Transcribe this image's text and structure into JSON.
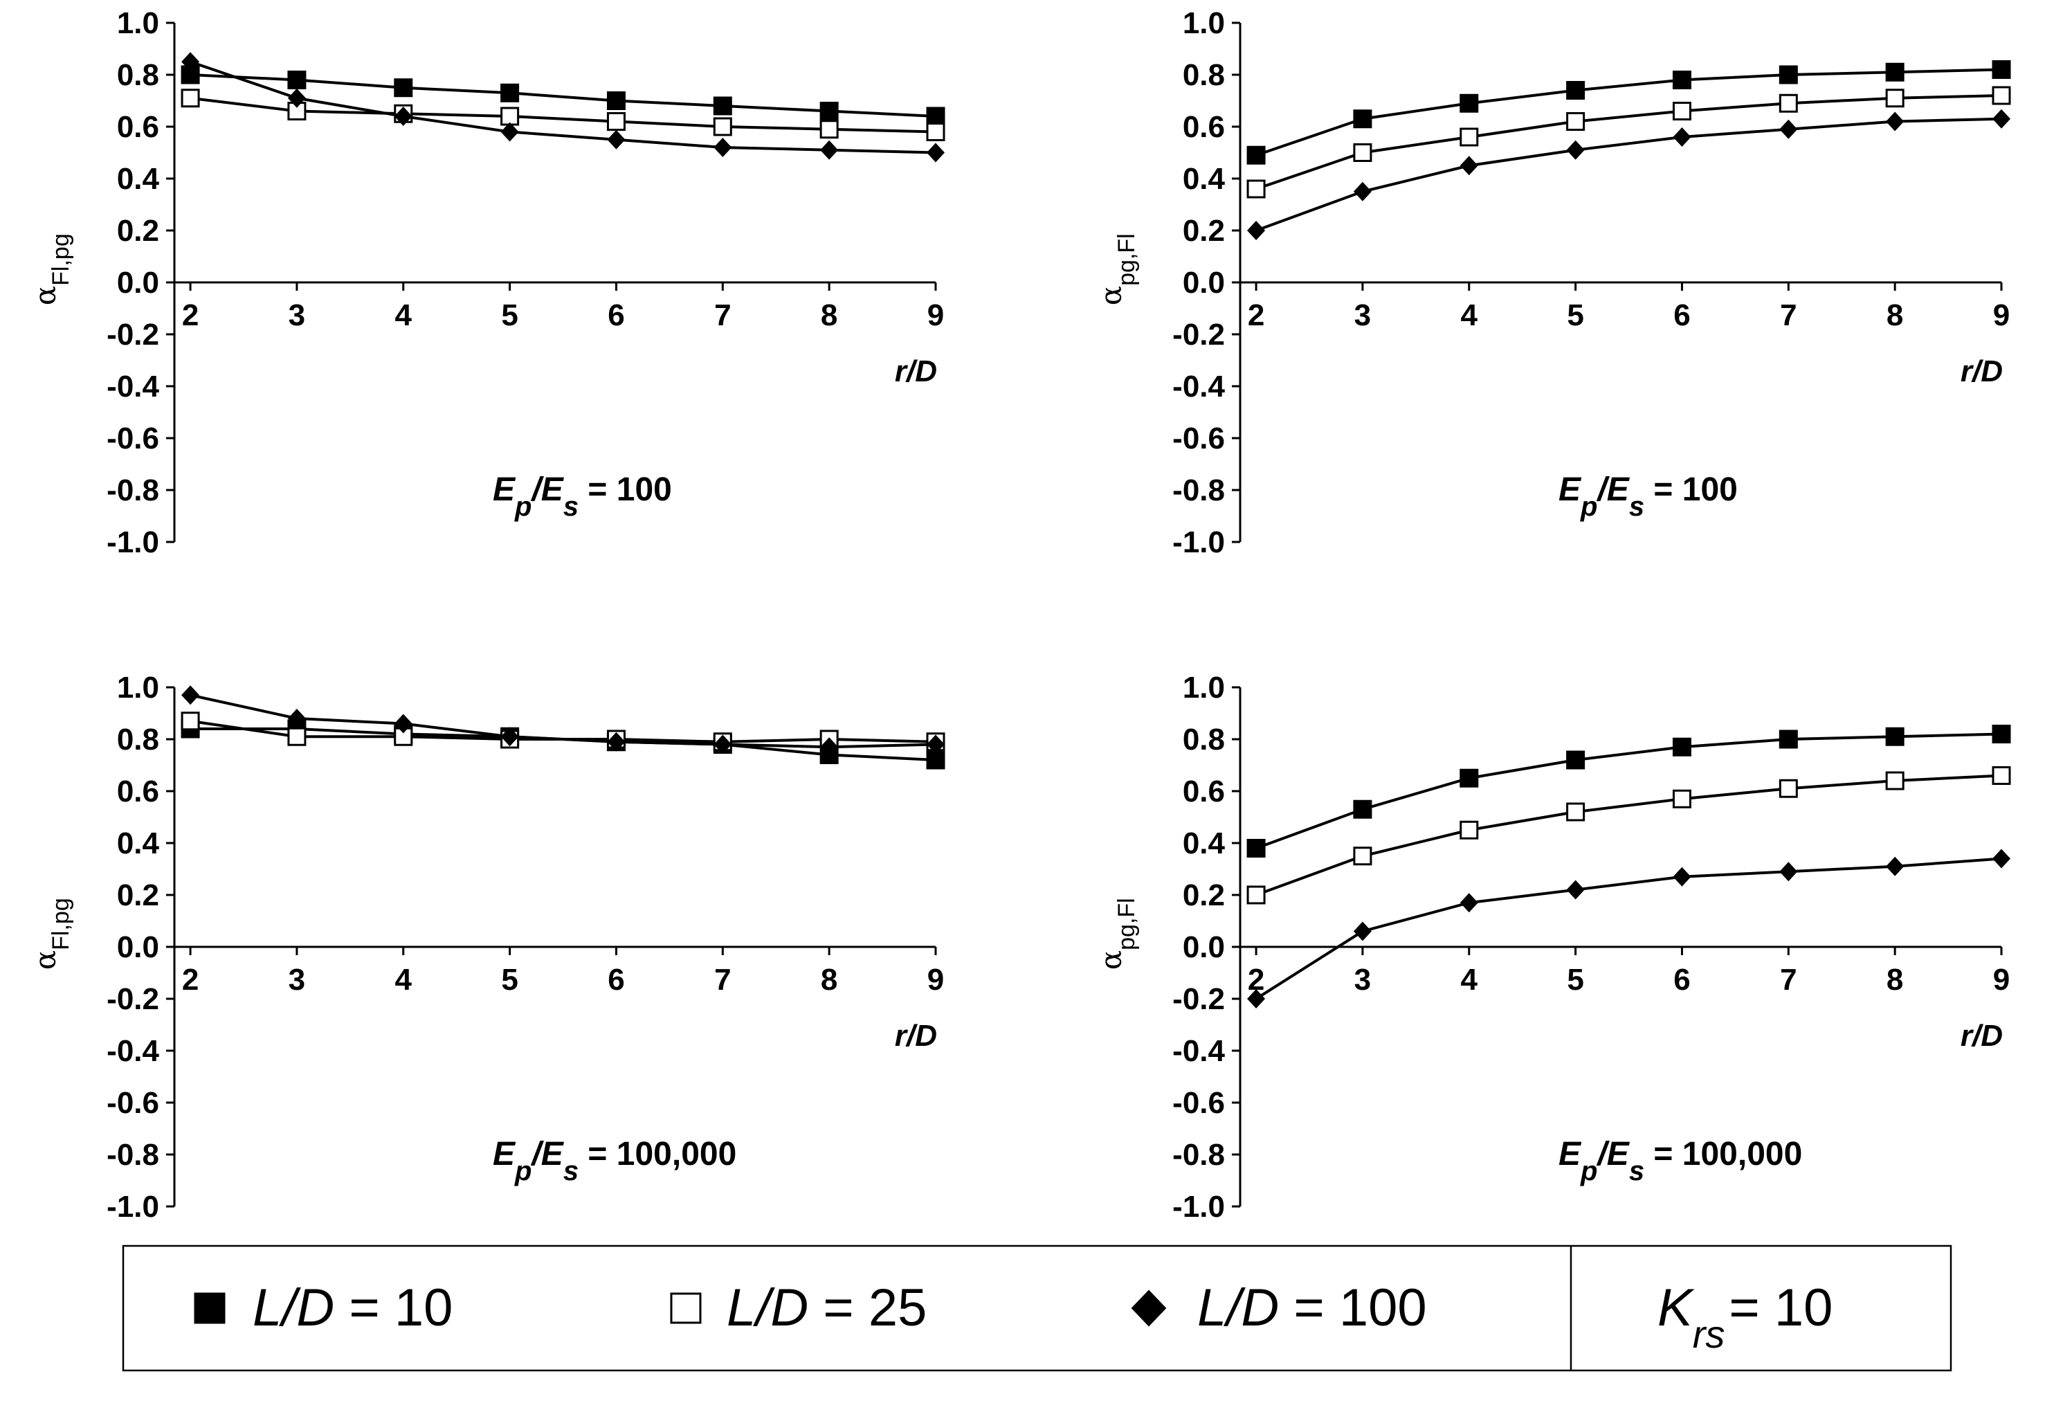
{
  "chart_data": [
    {
      "type": "line",
      "panel": "top-left",
      "xlabel": "r/D",
      "ylabel_main": "α",
      "ylabel_sub": "Fl,pg",
      "annotation": {
        "main": "E",
        "sub1": "p",
        "slash": "/E",
        "sub2": "s",
        "rest": " = 100"
      },
      "x": [
        2,
        3,
        4,
        5,
        6,
        7,
        8,
        9
      ],
      "xlim": [
        1.85,
        9
      ],
      "ylim": [
        -1.0,
        1.0
      ],
      "yticks": [
        "-1.0",
        "-0.8",
        "-0.6",
        "-0.4",
        "-0.2",
        "0.0",
        "0.2",
        "0.4",
        "0.6",
        "0.8",
        "1.0"
      ],
      "xticks": [
        "2",
        "3",
        "4",
        "5",
        "6",
        "7",
        "8",
        "9"
      ],
      "grid": false,
      "series": [
        {
          "name": "L/D = 10",
          "marker": "square-filled",
          "values": [
            0.8,
            0.78,
            0.75,
            0.73,
            0.7,
            0.68,
            0.66,
            0.64
          ]
        },
        {
          "name": "L/D = 25",
          "marker": "square-open",
          "values": [
            0.71,
            0.66,
            0.65,
            0.64,
            0.62,
            0.6,
            0.59,
            0.58
          ]
        },
        {
          "name": "L/D = 100",
          "marker": "diamond-filled",
          "values": [
            0.85,
            0.71,
            0.64,
            0.58,
            0.55,
            0.52,
            0.51,
            0.5
          ]
        }
      ]
    },
    {
      "type": "line",
      "panel": "top-right",
      "xlabel": "r/D",
      "ylabel_main": "α",
      "ylabel_sub": "pg,Fl",
      "annotation": {
        "main": "E",
        "sub1": "p",
        "slash": "/E",
        "sub2": "s",
        "rest": " = 100"
      },
      "x": [
        2,
        3,
        4,
        5,
        6,
        7,
        8,
        9
      ],
      "xlim": [
        1.85,
        9
      ],
      "ylim": [
        -1.0,
        1.0
      ],
      "yticks": [
        "-1.0",
        "-0.8",
        "-0.6",
        "-0.4",
        "-0.2",
        "0.0",
        "0.2",
        "0.4",
        "0.6",
        "0.8",
        "1.0"
      ],
      "xticks": [
        "2",
        "3",
        "4",
        "5",
        "6",
        "7",
        "8",
        "9"
      ],
      "grid": false,
      "series": [
        {
          "name": "L/D = 10",
          "marker": "square-filled",
          "values": [
            0.49,
            0.63,
            0.69,
            0.74,
            0.78,
            0.8,
            0.81,
            0.82
          ]
        },
        {
          "name": "L/D = 25",
          "marker": "square-open",
          "values": [
            0.36,
            0.5,
            0.56,
            0.62,
            0.66,
            0.69,
            0.71,
            0.72
          ]
        },
        {
          "name": "L/D = 100",
          "marker": "diamond-filled",
          "values": [
            0.2,
            0.35,
            0.45,
            0.51,
            0.56,
            0.59,
            0.62,
            0.63
          ]
        }
      ]
    },
    {
      "type": "line",
      "panel": "bottom-left",
      "xlabel": "r/D",
      "ylabel_main": "α",
      "ylabel_sub": "Fl,pg",
      "annotation": {
        "main": "E",
        "sub1": "p",
        "slash": "/E",
        "sub2": "s",
        "rest": " = 100,000"
      },
      "x": [
        2,
        3,
        4,
        5,
        6,
        7,
        8,
        9
      ],
      "xlim": [
        1.85,
        9
      ],
      "ylim": [
        -1.0,
        1.0
      ],
      "yticks": [
        "-1.0",
        "-0.8",
        "-0.6",
        "-0.4",
        "-0.2",
        "0.0",
        "0.2",
        "0.4",
        "0.6",
        "0.8",
        "1.0"
      ],
      "xticks": [
        "2",
        "3",
        "4",
        "5",
        "6",
        "7",
        "8",
        "9"
      ],
      "grid": false,
      "series": [
        {
          "name": "L/D = 10",
          "marker": "square-filled",
          "values": [
            0.84,
            0.84,
            0.82,
            0.81,
            0.79,
            0.78,
            0.74,
            0.72
          ]
        },
        {
          "name": "L/D = 25",
          "marker": "square-open",
          "values": [
            0.87,
            0.81,
            0.81,
            0.8,
            0.8,
            0.79,
            0.8,
            0.79
          ]
        },
        {
          "name": "L/D = 100",
          "marker": "diamond-filled",
          "values": [
            0.97,
            0.88,
            0.86,
            0.81,
            0.79,
            0.78,
            0.77,
            0.78
          ]
        }
      ]
    },
    {
      "type": "line",
      "panel": "bottom-right",
      "xlabel": "r/D",
      "ylabel_main": "α",
      "ylabel_sub": "pg,Fl",
      "annotation": {
        "main": "E",
        "sub1": "p",
        "slash": "/E",
        "sub2": "s",
        "rest": " = 100,000"
      },
      "x": [
        2,
        3,
        4,
        5,
        6,
        7,
        8,
        9
      ],
      "xlim": [
        1.85,
        9
      ],
      "ylim": [
        -1.0,
        1.0
      ],
      "yticks": [
        "-1.0",
        "-0.8",
        "-0.6",
        "-0.4",
        "-0.2",
        "0.0",
        "0.2",
        "0.4",
        "0.6",
        "0.8",
        "1.0"
      ],
      "xticks": [
        "2",
        "3",
        "4",
        "5",
        "6",
        "7",
        "8",
        "9"
      ],
      "grid": false,
      "series": [
        {
          "name": "L/D = 10",
          "marker": "square-filled",
          "values": [
            0.38,
            0.53,
            0.65,
            0.72,
            0.77,
            0.8,
            0.81,
            0.82
          ]
        },
        {
          "name": "L/D = 25",
          "marker": "square-open",
          "values": [
            0.2,
            0.35,
            0.45,
            0.52,
            0.57,
            0.61,
            0.64,
            0.66
          ]
        },
        {
          "name": "L/D = 100",
          "marker": "diamond-filled",
          "values": [
            -0.2,
            0.06,
            0.17,
            0.22,
            0.27,
            0.29,
            0.31,
            0.34
          ]
        }
      ]
    }
  ],
  "legend": {
    "placement": "bottom",
    "entries": [
      {
        "marker": "square-filled",
        "italic": "L/D",
        "rest": " = 10"
      },
      {
        "marker": "square-open",
        "italic": "L/D",
        "rest": " = 25"
      },
      {
        "marker": "diamond-filled",
        "italic": "L/D",
        "rest": " = 100"
      }
    ],
    "parameter": {
      "main": "K",
      "sub": "rs",
      "rest": "= 10"
    }
  }
}
